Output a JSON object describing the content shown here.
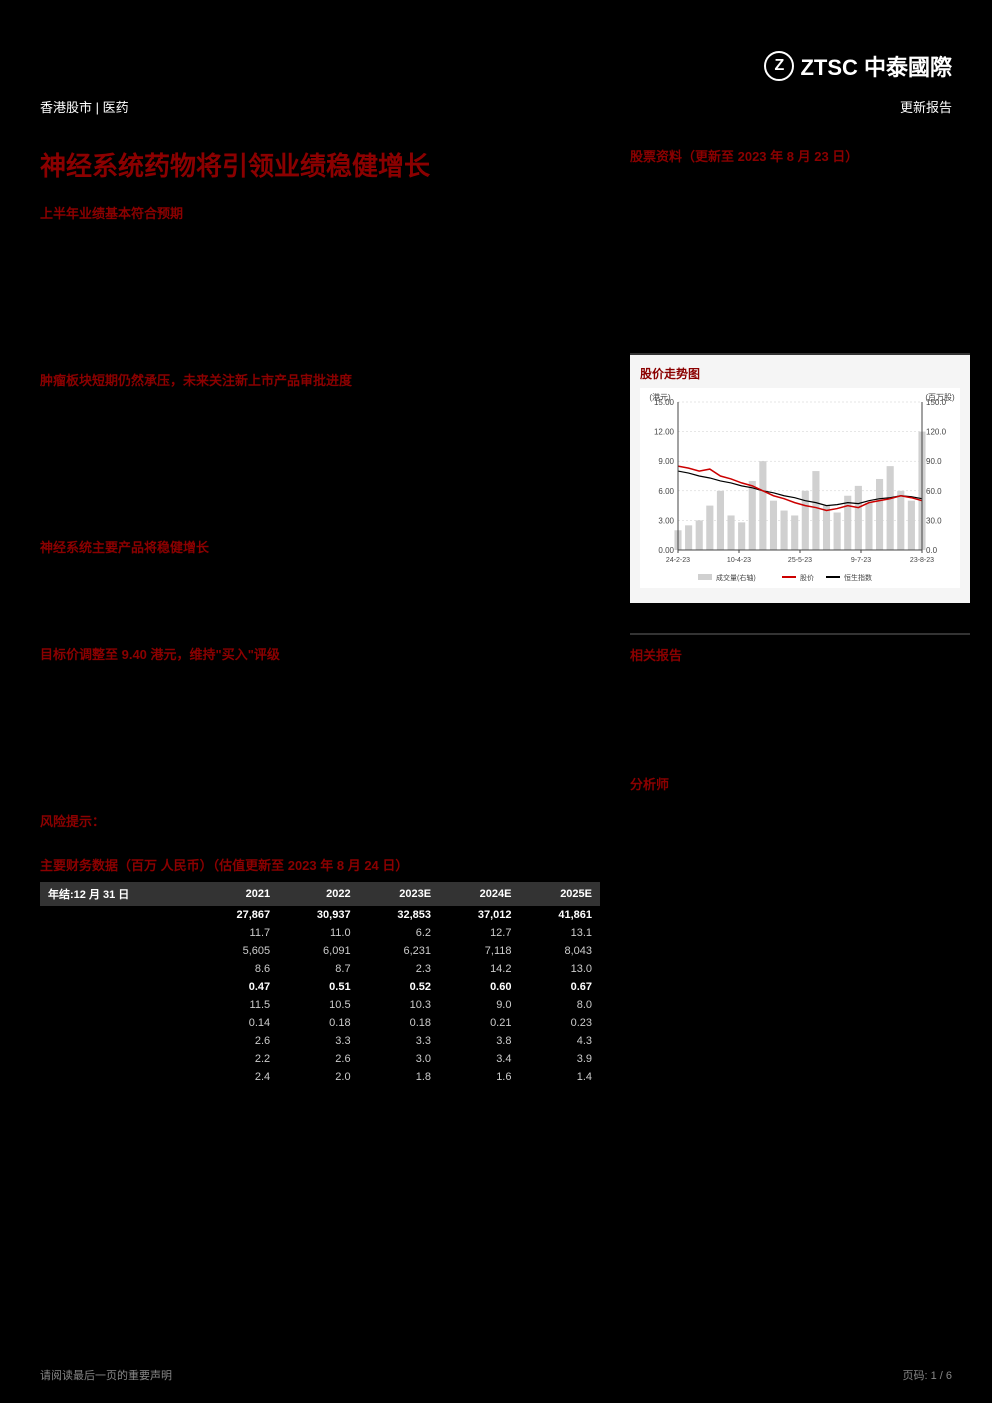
{
  "header": {
    "logo_text": "ZTSC 中泰國際",
    "category_left": "香港股市 | 医药",
    "category_right": "更新报告"
  },
  "left": {
    "title_main": "神经系统药物将引领业绩稳健增长",
    "section1_header": "上半年业绩基本符合预期",
    "section2_header": "肿瘤板块短期仍然承压，未来关注新上市产品审批进度",
    "section3_header": "神经系统主要产品将稳健增长",
    "section4_header": "目标价调整至 9.40 港元，维持\"买入\"评级",
    "section5_header": "风险提示：",
    "fin_table_title": "主要财务数据（百万 人民币）（估值更新至 2023 年 8 月 24 日）",
    "fin_table": {
      "header_row": [
        "年结:12 月 31 日",
        "2021",
        "2022",
        "2023E",
        "2024E",
        "2025E"
      ],
      "rows": [
        {
          "cells": [
            "",
            "27,867",
            "30,937",
            "32,853",
            "37,012",
            "41,861"
          ],
          "bold": true
        },
        {
          "cells": [
            "",
            "11.7",
            "11.0",
            "6.2",
            "12.7",
            "13.1"
          ],
          "bold": false
        },
        {
          "cells": [
            "",
            "5,605",
            "6,091",
            "6,231",
            "7,118",
            "8,043"
          ],
          "bold": false
        },
        {
          "cells": [
            "",
            "8.6",
            "8.7",
            "2.3",
            "14.2",
            "13.0"
          ],
          "bold": false
        },
        {
          "cells": [
            "",
            "0.47",
            "0.51",
            "0.52",
            "0.60",
            "0.67"
          ],
          "bold": true
        },
        {
          "cells": [
            "",
            "11.5",
            "10.5",
            "10.3",
            "9.0",
            "8.0"
          ],
          "bold": false
        },
        {
          "cells": [
            "",
            "0.14",
            "0.18",
            "0.18",
            "0.21",
            "0.23"
          ],
          "bold": false
        },
        {
          "cells": [
            "",
            "2.6",
            "3.3",
            "3.3",
            "3.8",
            "4.3"
          ],
          "bold": false
        },
        {
          "cells": [
            "",
            "2.2",
            "2.6",
            "3.0",
            "3.4",
            "3.9"
          ],
          "bold": false
        },
        {
          "cells": [
            "",
            "2.4",
            "2.0",
            "1.8",
            "1.6",
            "1.4"
          ],
          "bold": false
        }
      ]
    }
  },
  "right": {
    "stock_info_header": "股票资料（更新至 2023 年 8 月 23 日）",
    "chart_title": "股价走势图",
    "chart": {
      "type": "combo-line-bar",
      "y_left_label": "(港元)",
      "y_right_label": "(百万股)",
      "y_left_ticks": [
        0.0,
        3.0,
        6.0,
        9.0,
        12.0,
        15.0
      ],
      "y_right_ticks": [
        0.0,
        30.0,
        60.0,
        90.0,
        120.0,
        150.0
      ],
      "x_ticks": [
        "24-2-23",
        "10-4-23",
        "25-5-23",
        "9-7-23",
        "23-8-23"
      ],
      "legend": [
        "成交量(右轴)",
        "股价",
        "恒生指数"
      ],
      "legend_colors": [
        "#d0d0d0",
        "#cc0000",
        "#000000"
      ],
      "price_color": "#cc0000",
      "index_color": "#000000",
      "volume_color": "#d0d0d0",
      "background_color": "#ffffff",
      "grid_color": "#cccccc",
      "price_series": [
        8.5,
        8.3,
        8.0,
        8.2,
        7.5,
        7.2,
        6.8,
        6.5,
        6.0,
        5.5,
        5.2,
        4.8,
        4.5,
        4.3,
        4.0,
        4.2,
        4.5,
        4.3,
        4.8,
        5.0,
        5.2,
        5.5,
        5.3,
        5.0
      ],
      "index_series": [
        8.0,
        7.8,
        7.5,
        7.3,
        7.0,
        6.8,
        6.5,
        6.3,
        6.0,
        5.8,
        5.5,
        5.3,
        5.0,
        4.8,
        4.5,
        4.6,
        4.8,
        4.7,
        5.0,
        5.2,
        5.3,
        5.5,
        5.4,
        5.2
      ],
      "volume_series": [
        20,
        25,
        30,
        45,
        60,
        35,
        28,
        70,
        90,
        50,
        40,
        35,
        60,
        80,
        45,
        38,
        55,
        65,
        48,
        72,
        85,
        60,
        50,
        120
      ]
    },
    "related_header": "相关报告",
    "analyst_header": "分析师"
  },
  "footer": {
    "disclaimer": "请阅读最后一页的重要声明",
    "page_num": "页码: 1 / 6"
  }
}
